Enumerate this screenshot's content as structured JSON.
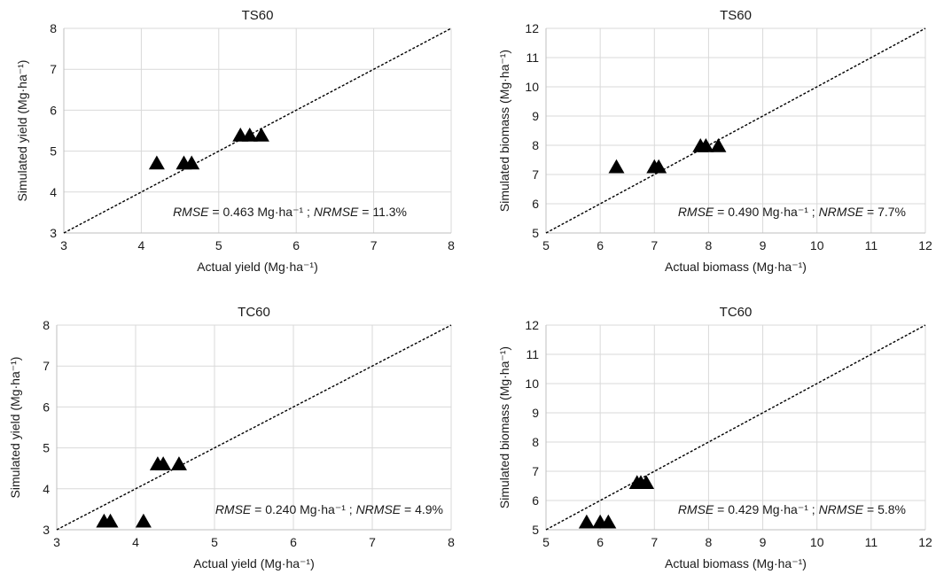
{
  "chart_data": [
    {
      "type": "scatter",
      "title": "TS60",
      "xlabel": "Actual yield (Mg·ha⁻¹)",
      "ylabel": "Simulated yield (Mg·ha⁻¹)",
      "xlim": [
        3,
        8
      ],
      "ylim": [
        3,
        8
      ],
      "xticks": [
        "3",
        "4",
        "5",
        "6",
        "7",
        "8"
      ],
      "yticks": [
        "3",
        "4",
        "5",
        "6",
        "7",
        "8"
      ],
      "grid": true,
      "one_to_one_line": true,
      "marker": "triangle",
      "points": [
        {
          "x": 4.2,
          "y": 4.7
        },
        {
          "x": 4.55,
          "y": 4.7
        },
        {
          "x": 4.65,
          "y": 4.7
        },
        {
          "x": 5.28,
          "y": 5.38
        },
        {
          "x": 5.4,
          "y": 5.38
        },
        {
          "x": 5.55,
          "y": 5.38
        }
      ],
      "annotation": {
        "rmse_label": "RMSE",
        "rmse_value": " = 0.463 Mg·ha⁻¹ ; ",
        "nrmse_label": "NRMSE",
        "nrmse_value": " = 11.3%"
      }
    },
    {
      "type": "scatter",
      "title": "TS60",
      "xlabel": "Actual biomass (Mg·ha⁻¹)",
      "ylabel": "Simulated biomass (Mg·ha⁻¹)",
      "xlim": [
        5,
        12
      ],
      "ylim": [
        5,
        12
      ],
      "xticks": [
        "5",
        "6",
        "7",
        "8",
        "9",
        "10",
        "11",
        "12"
      ],
      "yticks": [
        "5",
        "6",
        "7",
        "8",
        "9",
        "10",
        "11",
        "12"
      ],
      "grid": true,
      "one_to_one_line": true,
      "marker": "triangle",
      "points": [
        {
          "x": 6.3,
          "y": 7.25
        },
        {
          "x": 7.0,
          "y": 7.25
        },
        {
          "x": 7.08,
          "y": 7.25
        },
        {
          "x": 7.85,
          "y": 7.97
        },
        {
          "x": 7.95,
          "y": 7.97
        },
        {
          "x": 8.18,
          "y": 7.97
        }
      ],
      "annotation": {
        "rmse_label": "RMSE",
        "rmse_value": " = 0.490 Mg·ha⁻¹ ; ",
        "nrmse_label": "NRMSE",
        "nrmse_value": " = 7.7%"
      }
    },
    {
      "type": "scatter",
      "title": "TC60",
      "xlabel": "Actual yield (Mg·ha⁻¹)",
      "ylabel": "Simulated yield (Mg·ha⁻¹)",
      "xlim": [
        3,
        8
      ],
      "ylim": [
        3,
        8
      ],
      "xticks": [
        "3",
        "4",
        "5",
        "6",
        "7",
        "8"
      ],
      "yticks": [
        "3",
        "4",
        "5",
        "6",
        "7",
        "8"
      ],
      "grid": true,
      "one_to_one_line": true,
      "marker": "triangle",
      "points": [
        {
          "x": 3.6,
          "y": 3.2
        },
        {
          "x": 3.68,
          "y": 3.2
        },
        {
          "x": 4.1,
          "y": 3.2
        },
        {
          "x": 4.28,
          "y": 4.6
        },
        {
          "x": 4.35,
          "y": 4.6
        },
        {
          "x": 4.55,
          "y": 4.6
        }
      ],
      "annotation": {
        "rmse_label": "RMSE",
        "rmse_value": " = 0.240 Mg·ha⁻¹ ; ",
        "nrmse_label": "NRMSE",
        "nrmse_value": " = 4.9%"
      }
    },
    {
      "type": "scatter",
      "title": "TC60",
      "xlabel": "Actual biomass (Mg·ha⁻¹)",
      "ylabel": "Simulated biomass (Mg·ha⁻¹)",
      "xlim": [
        5,
        12
      ],
      "ylim": [
        5,
        12
      ],
      "xticks": [
        "5",
        "6",
        "7",
        "8",
        "9",
        "10",
        "11",
        "12"
      ],
      "yticks": [
        "5",
        "6",
        "7",
        "8",
        "9",
        "10",
        "11",
        "12"
      ],
      "grid": true,
      "one_to_one_line": true,
      "marker": "triangle",
      "points": [
        {
          "x": 5.75,
          "y": 5.25
        },
        {
          "x": 6.0,
          "y": 5.25
        },
        {
          "x": 6.15,
          "y": 5.25
        },
        {
          "x": 6.68,
          "y": 6.6
        },
        {
          "x": 6.75,
          "y": 6.6
        },
        {
          "x": 6.85,
          "y": 6.6
        }
      ],
      "annotation": {
        "rmse_label": "RMSE",
        "rmse_value": " = 0.429 Mg·ha⁻¹ ; ",
        "nrmse_label": "NRMSE",
        "nrmse_value": " = 5.8%"
      }
    }
  ]
}
